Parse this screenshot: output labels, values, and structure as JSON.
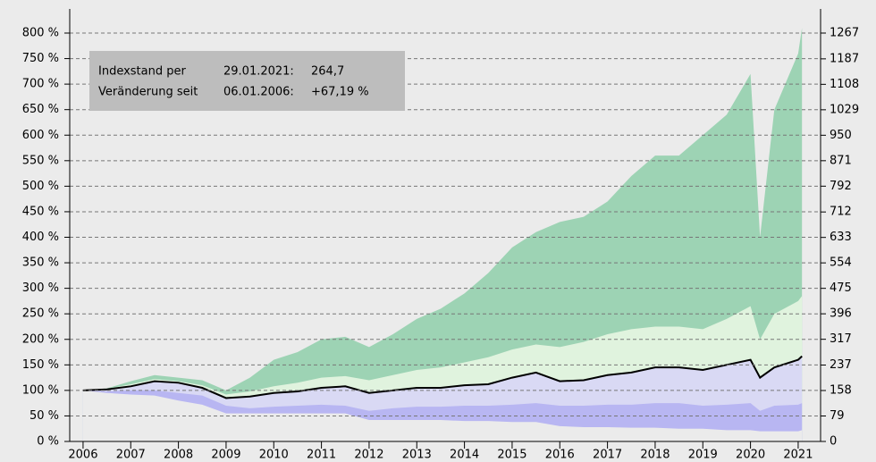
{
  "chart_data": {
    "type": "area",
    "annotation": {
      "rows": [
        [
          "Indexstand per",
          "29.01.2021:",
          "264,7"
        ],
        [
          "Veränderung seit",
          "06.01.2006:",
          "+67,19 %"
        ]
      ]
    },
    "x": [
      2006,
      2006.5,
      2007,
      2007.5,
      2008,
      2008.5,
      2009,
      2009.5,
      2010,
      2010.5,
      2011,
      2011.5,
      2012,
      2012.5,
      2013,
      2013.5,
      2014,
      2014.5,
      2015,
      2015.5,
      2016,
      2016.5,
      2017,
      2017.5,
      2018,
      2018.5,
      2019,
      2019.5,
      2020,
      2020.2,
      2020.5,
      2021,
      2021.08
    ],
    "series": [
      {
        "color": "#9dd3b4",
        "values": [
          100,
          104,
          118,
          130,
          125,
          120,
          100,
          125,
          160,
          175,
          200,
          205,
          185,
          210,
          240,
          260,
          290,
          330,
          380,
          410,
          430,
          440,
          470,
          520,
          560,
          560,
          600,
          640,
          720,
          400,
          650,
          760,
          810
        ]
      },
      {
        "color": "#e0f3de",
        "values": [
          100,
          103,
          112,
          122,
          118,
          110,
          92,
          98,
          108,
          115,
          125,
          128,
          120,
          130,
          140,
          145,
          155,
          165,
          180,
          190,
          185,
          195,
          210,
          220,
          225,
          225,
          220,
          240,
          265,
          200,
          250,
          275,
          285
        ]
      },
      {
        "color": "#d9d9f4",
        "line_color": "#000000",
        "values": [
          100,
          102,
          108,
          118,
          115,
          105,
          85,
          88,
          95,
          98,
          105,
          108,
          95,
          100,
          105,
          105,
          110,
          112,
          125,
          135,
          118,
          120,
          130,
          135,
          145,
          145,
          140,
          150,
          160,
          125,
          145,
          160,
          167
        ]
      },
      {
        "color": "#b8b6f2",
        "values": [
          100,
          98,
          100,
          100,
          95,
          90,
          70,
          65,
          68,
          70,
          72,
          70,
          60,
          65,
          68,
          68,
          70,
          70,
          72,
          75,
          70,
          70,
          72,
          72,
          75,
          75,
          70,
          72,
          75,
          60,
          70,
          72,
          75
        ]
      },
      {
        "color": "#ebebeb",
        "values": [
          100,
          95,
          92,
          90,
          80,
          72,
          55,
          55,
          55,
          55,
          55,
          55,
          42,
          42,
          42,
          42,
          40,
          40,
          38,
          38,
          30,
          28,
          28,
          27,
          27,
          25,
          25,
          22,
          22,
          20,
          20,
          20,
          22
        ]
      }
    ],
    "xlim": [
      2005.72,
      2021.47
    ],
    "xticks": [
      2006,
      2007,
      2008,
      2009,
      2010,
      2011,
      2012,
      2013,
      2014,
      2015,
      2016,
      2017,
      2018,
      2019,
      2020,
      2021
    ],
    "ylim": [
      0,
      800
    ],
    "yticks": [
      {
        "value": 0,
        "label": "0 %"
      },
      {
        "value": 50,
        "label": "50 %"
      },
      {
        "value": 100,
        "label": "100 %"
      },
      {
        "value": 150,
        "label": "150 %"
      },
      {
        "value": 200,
        "label": "200 %"
      },
      {
        "value": 250,
        "label": "250 %"
      },
      {
        "value": 300,
        "label": "300 %"
      },
      {
        "value": 350,
        "label": "350 %"
      },
      {
        "value": 400,
        "label": "400 %"
      },
      {
        "value": 450,
        "label": "450 %"
      },
      {
        "value": 500,
        "label": "500 %"
      },
      {
        "value": 550,
        "label": "550 %"
      },
      {
        "value": 600,
        "label": "600 %"
      },
      {
        "value": 650,
        "label": "650 %"
      },
      {
        "value": 700,
        "label": "700 %"
      },
      {
        "value": 750,
        "label": "750 %"
      },
      {
        "value": 800,
        "label": "800 %"
      }
    ],
    "y2lim": [
      0,
      1267
    ],
    "y2ticks": [
      0,
      79,
      158,
      237,
      317,
      396,
      475,
      554,
      633,
      712,
      792,
      871,
      950,
      1029,
      1108,
      1187,
      1267
    ],
    "grid": true
  }
}
